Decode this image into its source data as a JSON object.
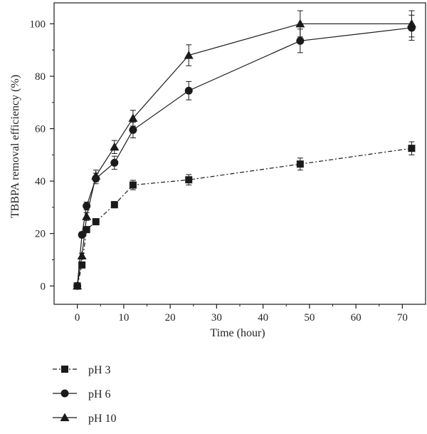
{
  "chart_data": {
    "type": "line",
    "title": "",
    "xlabel": "Time (hour)",
    "ylabel": "TBBPA removal efficiency (%)",
    "xlim": [
      -5,
      75
    ],
    "ylim": [
      -7,
      108
    ],
    "xticks": [
      0,
      10,
      20,
      30,
      40,
      50,
      60,
      70
    ],
    "yticks": [
      0,
      20,
      40,
      60,
      80,
      100
    ],
    "x": [
      0,
      1,
      2,
      4,
      8,
      12,
      24,
      48,
      72
    ],
    "series": [
      {
        "name": "pH 3",
        "marker": "square",
        "line_style": "dash-dot",
        "color": "#1a1a1a",
        "values": [
          0,
          8,
          21.5,
          24.5,
          31,
          38.5,
          40.5,
          46.5,
          52.5
        ],
        "errors": [
          0,
          0.8,
          0.9,
          1.0,
          1.2,
          1.8,
          2.0,
          2.3,
          2.5
        ]
      },
      {
        "name": "pH 6",
        "marker": "circle",
        "line_style": "solid",
        "color": "#1a1a1a",
        "values": [
          0,
          19.5,
          30.5,
          41,
          47,
          59.5,
          74.5,
          93.5,
          98.5
        ],
        "errors": [
          0,
          1.0,
          1.5,
          2.0,
          2.5,
          3.0,
          3.5,
          4.5,
          4.8
        ]
      },
      {
        "name": "pH 10",
        "marker": "triangle",
        "line_style": "solid",
        "color": "#1a1a1a",
        "values": [
          0,
          11.5,
          26.5,
          42,
          53,
          64,
          88,
          100,
          100
        ],
        "errors": [
          0,
          1.0,
          1.5,
          2.2,
          2.5,
          3.0,
          4.0,
          5.0,
          5.0
        ]
      }
    ],
    "legend": {
      "placement": "bottom-left",
      "entries": [
        "pH 3",
        "pH 6",
        "pH 10"
      ]
    }
  }
}
